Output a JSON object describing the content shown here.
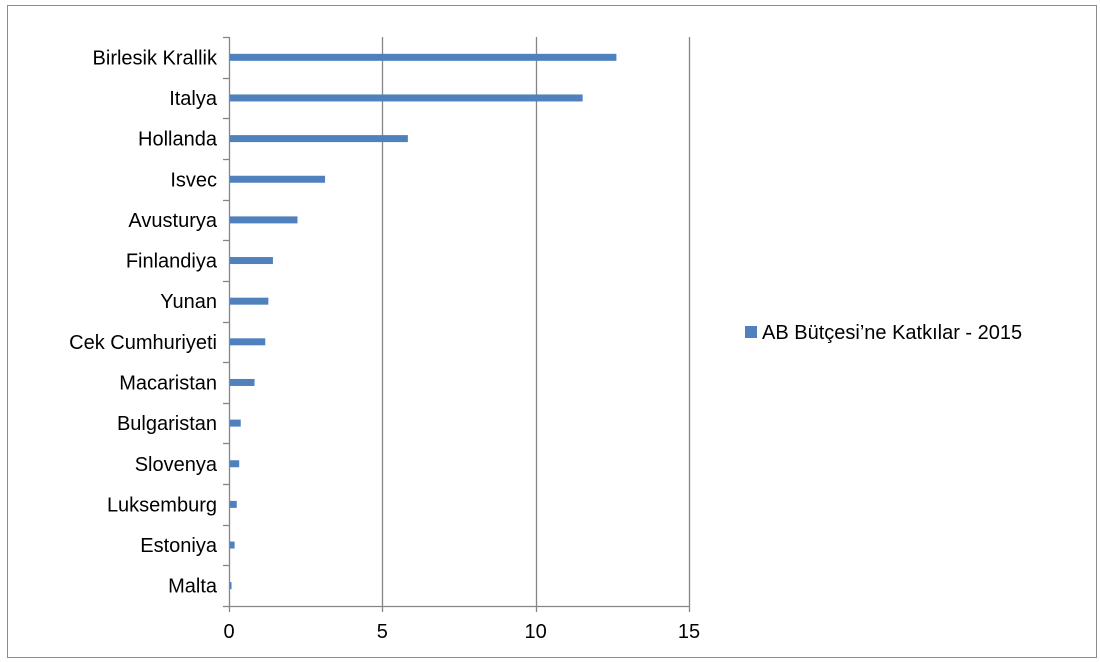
{
  "chart_data": {
    "type": "bar",
    "orientation": "horizontal",
    "categories": [
      "Birlesik Krallik",
      "Italya",
      "Hollanda",
      "Isvec",
      "Avusturya",
      "Finlandiya",
      "Yunan",
      "Cek Cumhuriyeti",
      "Macaristan",
      "Bulgaristan",
      "Slovenya",
      "Luksemburg",
      "Estoniya",
      "Malta"
    ],
    "series": [
      {
        "name": "AB Bütçesi’ne Katkılar - 2015",
        "color": "#4f81bd",
        "values": [
          12.6,
          11.5,
          5.8,
          3.1,
          2.2,
          1.4,
          1.25,
          1.15,
          0.8,
          0.35,
          0.3,
          0.22,
          0.15,
          0.05
        ]
      }
    ],
    "xlim": [
      0,
      15
    ],
    "xticks": [
      0,
      5,
      10,
      15
    ],
    "xlabel": "",
    "ylabel": "",
    "title": "",
    "grid": "vertical",
    "legend_position": "right"
  }
}
